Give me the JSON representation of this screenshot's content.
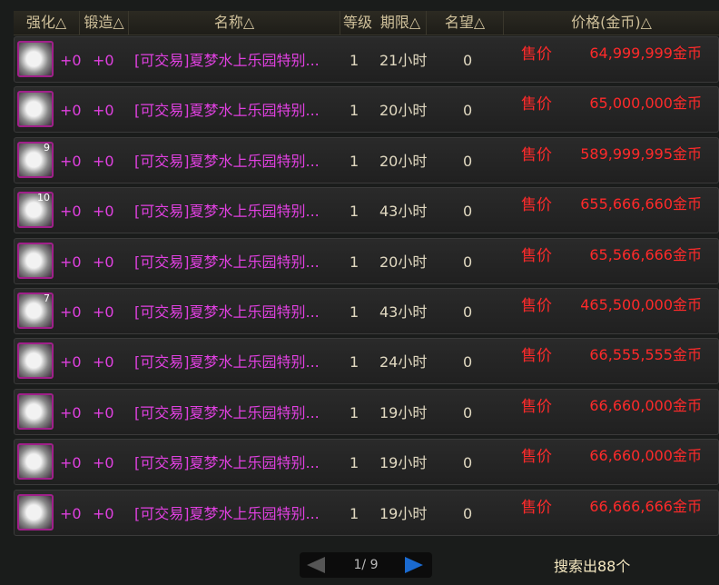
{
  "columns": [
    "强化△",
    "锻造△",
    "名称△",
    "等级",
    "期限△",
    "名望△",
    "价格(金币)△"
  ],
  "sell_label": "售价",
  "rows": [
    {
      "enhance": "+0",
      "forge": "+0",
      "name": "[可交易]夏梦水上乐园特别...",
      "level": "1",
      "duration": "21小时",
      "fame": "0",
      "price": "64,999,999金币",
      "badge": ""
    },
    {
      "enhance": "+0",
      "forge": "+0",
      "name": "[可交易]夏梦水上乐园特别...",
      "level": "1",
      "duration": "20小时",
      "fame": "0",
      "price": "65,000,000金币",
      "badge": ""
    },
    {
      "enhance": "+0",
      "forge": "+0",
      "name": "[可交易]夏梦水上乐园特别...",
      "level": "1",
      "duration": "20小时",
      "fame": "0",
      "price": "589,999,995金币",
      "badge": "9"
    },
    {
      "enhance": "+0",
      "forge": "+0",
      "name": "[可交易]夏梦水上乐园特别...",
      "level": "1",
      "duration": "43小时",
      "fame": "0",
      "price": "655,666,660金币",
      "badge": "10"
    },
    {
      "enhance": "+0",
      "forge": "+0",
      "name": "[可交易]夏梦水上乐园特别...",
      "level": "1",
      "duration": "20小时",
      "fame": "0",
      "price": "65,566,666金币",
      "badge": ""
    },
    {
      "enhance": "+0",
      "forge": "+0",
      "name": "[可交易]夏梦水上乐园特别...",
      "level": "1",
      "duration": "43小时",
      "fame": "0",
      "price": "465,500,000金币",
      "badge": "7"
    },
    {
      "enhance": "+0",
      "forge": "+0",
      "name": "[可交易]夏梦水上乐园特别...",
      "level": "1",
      "duration": "24小时",
      "fame": "0",
      "price": "66,555,555金币",
      "badge": ""
    },
    {
      "enhance": "+0",
      "forge": "+0",
      "name": "[可交易]夏梦水上乐园特别...",
      "level": "1",
      "duration": "19小时",
      "fame": "0",
      "price": "66,660,000金币",
      "badge": ""
    },
    {
      "enhance": "+0",
      "forge": "+0",
      "name": "[可交易]夏梦水上乐园特别...",
      "level": "1",
      "duration": "19小时",
      "fame": "0",
      "price": "66,660,000金币",
      "badge": ""
    },
    {
      "enhance": "+0",
      "forge": "+0",
      "name": "[可交易]夏梦水上乐园特别...",
      "level": "1",
      "duration": "19小时",
      "fame": "0",
      "price": "66,666,666金币",
      "badge": ""
    }
  ],
  "pager": {
    "text": "1/ 9"
  },
  "result_count": "搜索出88个"
}
